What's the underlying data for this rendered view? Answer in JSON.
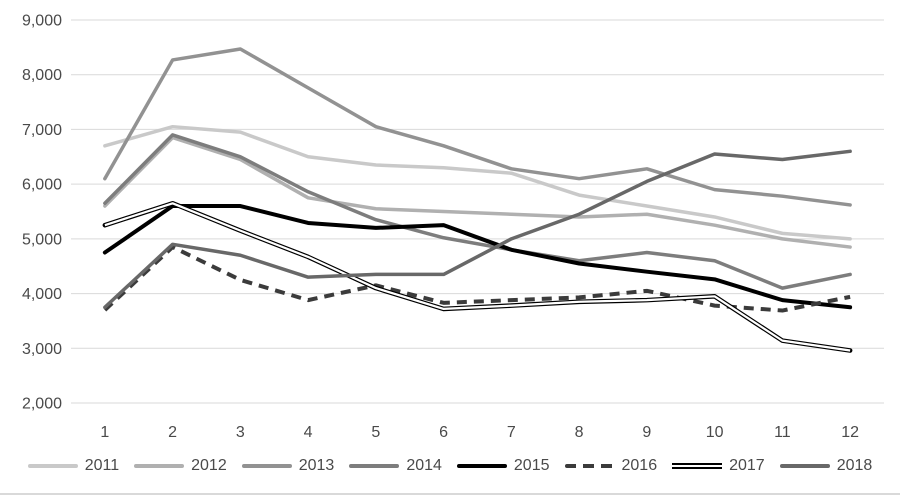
{
  "chart_data": {
    "type": "line",
    "title": "",
    "xlabel": "",
    "ylabel": "",
    "x_tick_labels": [
      "1",
      "2",
      "3",
      "4",
      "5",
      "6",
      "7",
      "8",
      "9",
      "10",
      "11",
      "12"
    ],
    "y_tick_labels": [
      "2,000",
      "3,000",
      "4,000",
      "5,000",
      "6,000",
      "7,000",
      "8,000",
      "9,000"
    ],
    "ytick_values": [
      2000,
      3000,
      4000,
      5000,
      6000,
      7000,
      8000,
      9000
    ],
    "ylim": [
      2000,
      9000
    ],
    "grid": true,
    "legend_position": "bottom",
    "colors": {
      "background": "#ffffff",
      "gridline": "#d9d9d9",
      "tick_text": "#4a4a4a",
      "bottom_border": "#d9d9d9"
    },
    "series": [
      {
        "name": "2011",
        "color": "#c9c9c9",
        "style": "solid",
        "width": 3.5,
        "values": [
          6700,
          7050,
          6950,
          6500,
          6350,
          6300,
          6200,
          5800,
          5600,
          5400,
          5100,
          5000
        ]
      },
      {
        "name": "2012",
        "color": "#b0b0b0",
        "style": "solid",
        "width": 3.5,
        "values": [
          5600,
          6850,
          6450,
          5750,
          5550,
          5500,
          5450,
          5400,
          5450,
          5250,
          5000,
          4850
        ]
      },
      {
        "name": "2013",
        "color": "#929292",
        "style": "solid",
        "width": 3.5,
        "values": [
          6100,
          8270,
          8470,
          7760,
          7050,
          6700,
          6280,
          6100,
          6280,
          5900,
          5780,
          5620
        ]
      },
      {
        "name": "2014",
        "color": "#7d7d7d",
        "style": "solid",
        "width": 3.5,
        "values": [
          5650,
          6900,
          6500,
          5860,
          5350,
          5020,
          4800,
          4600,
          4750,
          4600,
          4100,
          4350
        ]
      },
      {
        "name": "2015",
        "color": "#000000",
        "style": "solid",
        "width": 4,
        "values": [
          4750,
          5600,
          5600,
          5290,
          5200,
          5250,
          4800,
          4550,
          4400,
          4260,
          3880,
          3750
        ]
      },
      {
        "name": "2016",
        "color": "#3b3b3b",
        "style": "dashed",
        "width": 4,
        "values": [
          3700,
          4850,
          4250,
          3880,
          4150,
          3830,
          3880,
          3930,
          4050,
          3780,
          3690,
          3940
        ]
      },
      {
        "name": "2017",
        "color": "#000000",
        "style": "double",
        "width": 4.6,
        "values": [
          5250,
          5650,
          5150,
          4670,
          4100,
          3720,
          3780,
          3850,
          3880,
          3950,
          3140,
          2960
        ]
      },
      {
        "name": "2018",
        "color": "#686868",
        "style": "solid",
        "width": 3.5,
        "values": [
          3750,
          4900,
          4700,
          4300,
          4350,
          4350,
          5000,
          5450,
          6050,
          6550,
          6450,
          6600
        ]
      }
    ]
  }
}
